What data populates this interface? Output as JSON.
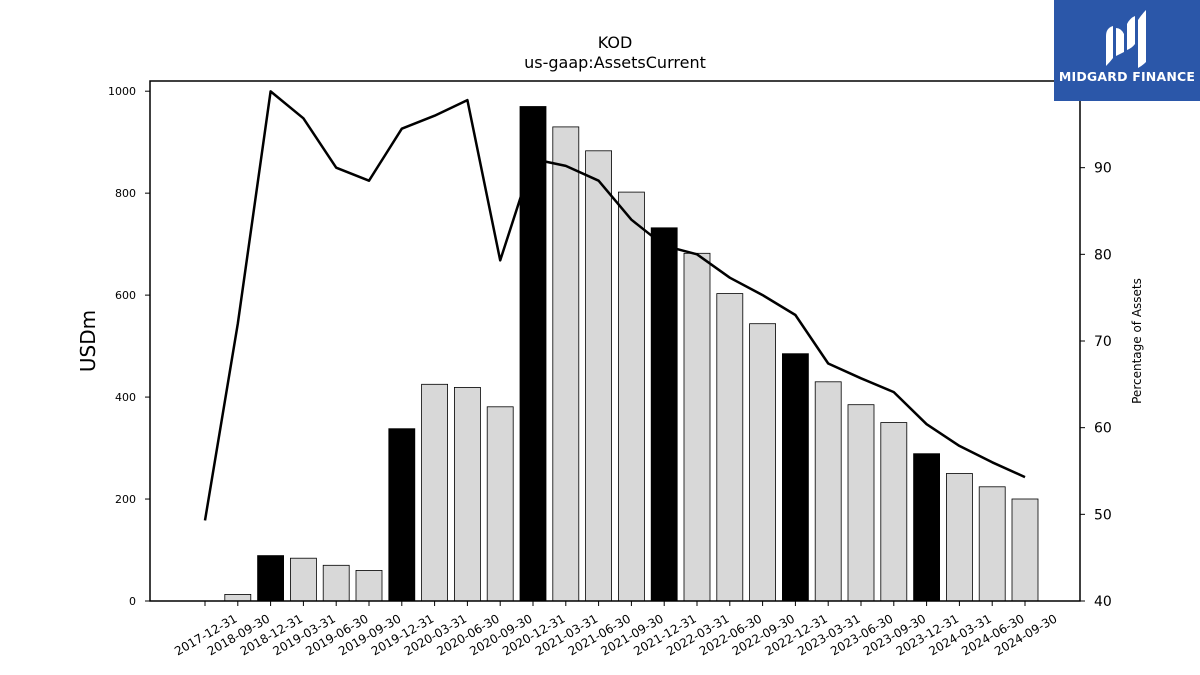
{
  "chart_data": {
    "type": "bar",
    "title": "KOD",
    "subtitle": "us-gaap:AssetsCurrent",
    "ylabel": "USDm",
    "y2label": "Percentage of Assets",
    "ylim": [
      0,
      1020
    ],
    "y2lim": [
      40,
      100
    ],
    "yticks": [
      "0",
      "200",
      "400",
      "600",
      "800",
      "1000"
    ],
    "y2ticks": [
      "40",
      "50",
      "60",
      "70",
      "80",
      "90"
    ],
    "categories": [
      "2017-12-31",
      "2018-09-30",
      "2018-12-31",
      "2019-03-31",
      "2019-06-30",
      "2019-09-30",
      "2019-12-31",
      "2020-03-31",
      "2020-06-30",
      "2020-09-30",
      "2020-12-31",
      "2021-03-31",
      "2021-06-30",
      "2021-09-30",
      "2021-12-31",
      "2022-03-31",
      "2022-06-30",
      "2022-09-30",
      "2022-12-31",
      "2023-03-31",
      "2023-06-30",
      "2023-09-30",
      "2023-12-31",
      "2024-03-31",
      "2024-06-30",
      "2024-09-30"
    ],
    "series": [
      {
        "values": [
          0,
          13,
          89,
          84,
          70,
          60,
          338,
          425,
          419,
          381,
          970,
          930,
          883,
          802,
          732,
          682,
          603,
          544,
          485,
          430,
          385,
          350,
          289,
          250,
          224,
          200
        ],
        "fiscal_year_end": [
          false,
          false,
          true,
          false,
          false,
          false,
          true,
          false,
          false,
          false,
          true,
          false,
          false,
          false,
          true,
          false,
          false,
          false,
          true,
          false,
          false,
          false,
          true,
          false,
          false,
          false
        ],
        "axis": "left"
      },
      {
        "values": [
          49.3,
          72.0,
          98.8,
          95.7,
          90.0,
          88.5,
          94.5,
          96.0,
          97.8,
          79.3,
          91.0,
          90.2,
          88.5,
          84.0,
          81.0,
          80.0,
          77.3,
          75.3,
          73.0,
          67.4,
          65.7,
          64.1,
          60.4,
          57.9,
          56.0,
          54.3
        ],
        "axis": "right"
      }
    ],
    "colors": {
      "bar": "#d8d8d8",
      "bar_fiscal_year": "#000000",
      "line": "#000000"
    },
    "grid": false
  },
  "logo": {
    "text": "MIDGARD FINANCE",
    "background": "#2b57a9"
  }
}
